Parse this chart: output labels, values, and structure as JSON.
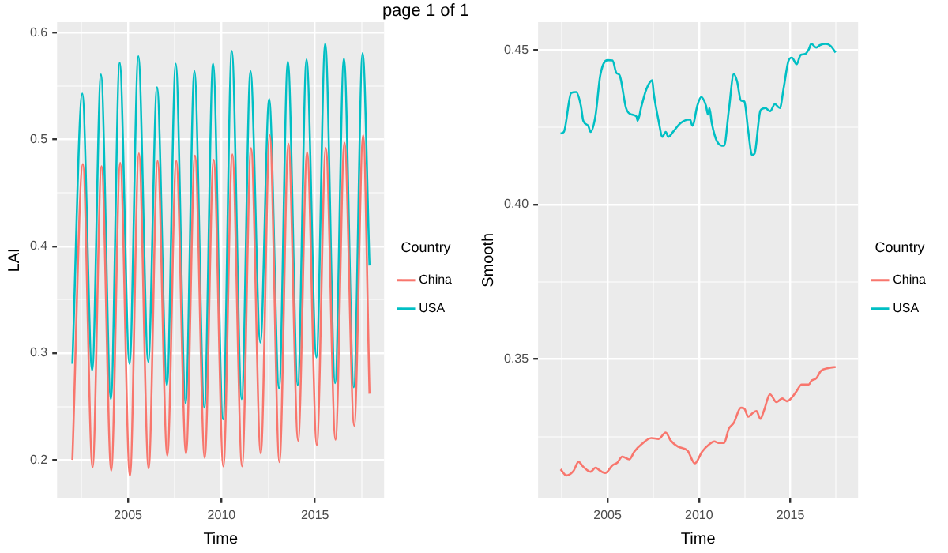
{
  "chart_data": [
    {
      "type": "line",
      "title": "page 1 of 1",
      "xlabel": "Time",
      "ylabel": "LAI",
      "legend_title": "Country",
      "legend": "right",
      "grid": true,
      "marker": "none",
      "xlim": [
        2001.2,
        2018.7
      ],
      "xticks": [
        {
          "value": 2002.5,
          "label": null
        },
        2005,
        {
          "value": 2007.5,
          "label": null
        },
        2010,
        {
          "value": 2012.5,
          "label": null
        },
        2015,
        {
          "value": 2017.5,
          "label": null
        }
      ],
      "ylim": [
        0.164,
        0.61
      ],
      "yticks": [
        {
          "value": 0.2,
          "label": "0.2"
        },
        {
          "value": 0.25,
          "label": null
        },
        {
          "value": 0.3,
          "label": "0.3"
        },
        {
          "value": 0.35,
          "label": null
        },
        {
          "value": 0.4,
          "label": "0.4"
        },
        {
          "value": 0.45,
          "label": null
        },
        {
          "value": 0.5,
          "label": "0.5"
        },
        {
          "value": 0.55,
          "label": null
        },
        {
          "value": 0.6,
          "label": "0.6"
        }
      ],
      "series": [
        {
          "name": "China",
          "color": "#f8766d",
          "x": [
            2002.02,
            2002.58,
            2003.1,
            2003.58,
            2004.1,
            2004.58,
            2005.1,
            2005.58,
            2006.1,
            2006.58,
            2007.1,
            2007.58,
            2008.1,
            2008.58,
            2009.1,
            2009.58,
            2010.1,
            2010.58,
            2011.1,
            2011.58,
            2012.1,
            2012.58,
            2013.1,
            2013.58,
            2014.1,
            2014.58,
            2015.1,
            2015.58,
            2016.1,
            2016.58,
            2017.1,
            2017.58,
            2017.92
          ],
          "values": [
            0.2,
            0.477,
            0.193,
            0.475,
            0.19,
            0.478,
            0.185,
            0.487,
            0.192,
            0.48,
            0.204,
            0.48,
            0.206,
            0.485,
            0.202,
            0.481,
            0.194,
            0.486,
            0.194,
            0.492,
            0.206,
            0.504,
            0.198,
            0.496,
            0.218,
            0.488,
            0.214,
            0.492,
            0.219,
            0.497,
            0.232,
            0.504,
            0.262
          ]
        },
        {
          "name": "USA",
          "color": "#00bfc4",
          "x": [
            2002.02,
            2002.55,
            2003.08,
            2003.55,
            2004.08,
            2004.55,
            2005.08,
            2005.55,
            2006.08,
            2006.55,
            2007.08,
            2007.55,
            2008.08,
            2008.55,
            2009.08,
            2009.55,
            2010.08,
            2010.55,
            2011.08,
            2011.55,
            2012.08,
            2012.55,
            2013.08,
            2013.55,
            2014.08,
            2014.55,
            2015.08,
            2015.55,
            2016.08,
            2016.55,
            2017.08,
            2017.55,
            2017.92
          ],
          "values": [
            0.29,
            0.543,
            0.284,
            0.561,
            0.257,
            0.572,
            0.29,
            0.578,
            0.292,
            0.549,
            0.27,
            0.571,
            0.253,
            0.564,
            0.249,
            0.571,
            0.238,
            0.583,
            0.257,
            0.564,
            0.31,
            0.538,
            0.267,
            0.573,
            0.27,
            0.575,
            0.296,
            0.59,
            0.272,
            0.576,
            0.268,
            0.581,
            0.382
          ]
        }
      ]
    },
    {
      "type": "line",
      "xlabel": "Time",
      "ylabel": "Smooth",
      "legend_title": "Country",
      "legend": "right",
      "grid": true,
      "marker": "none",
      "xlim": [
        2001.2,
        2018.7
      ],
      "xticks": [
        {
          "value": 2002.5,
          "label": null
        },
        2005,
        {
          "value": 2007.5,
          "label": null
        },
        2010,
        {
          "value": 2012.5,
          "label": null
        },
        2015,
        {
          "value": 2017.5,
          "label": null
        }
      ],
      "ylim": [
        0.305,
        0.459
      ],
      "yticks": [
        {
          "value": 0.325,
          "label": null
        },
        {
          "value": 0.35,
          "label": "0.35"
        },
        {
          "value": 0.375,
          "label": null
        },
        {
          "value": 0.4,
          "label": "0.40"
        },
        {
          "value": 0.425,
          "label": null
        },
        {
          "value": 0.45,
          "label": "0.45"
        }
      ],
      "series": [
        {
          "name": "China",
          "color": "#f8766d",
          "x": [
            2002.43,
            2002.75,
            2003.14,
            2003.41,
            2003.67,
            2004.07,
            2004.34,
            2004.6,
            2004.87,
            2005.27,
            2005.53,
            2005.8,
            2006.19,
            2006.46,
            2006.86,
            2007.39,
            2007.79,
            2008.18,
            2008.45,
            2008.85,
            2009.38,
            2009.77,
            2010.17,
            2010.57,
            2010.84,
            2011.05,
            2011.37,
            2011.63,
            2011.9,
            2012.29,
            2012.48,
            2012.69,
            2012.96,
            2013.14,
            2013.36,
            2013.54,
            2013.89,
            2014.23,
            2014.55,
            2014.81,
            2015.08,
            2015.34,
            2015.61,
            2016.01,
            2016.14,
            2016.41,
            2016.67,
            2017.07,
            2017.47
          ],
          "values": [
            0.3144,
            0.3124,
            0.3139,
            0.3168,
            0.3152,
            0.3136,
            0.3149,
            0.3139,
            0.3132,
            0.3157,
            0.3165,
            0.3185,
            0.3176,
            0.3201,
            0.3225,
            0.3245,
            0.3242,
            0.3263,
            0.3237,
            0.3217,
            0.3204,
            0.3163,
            0.3201,
            0.3225,
            0.3234,
            0.3229,
            0.3229,
            0.3275,
            0.3294,
            0.3343,
            0.334,
            0.3314,
            0.3327,
            0.3332,
            0.3307,
            0.3332,
            0.3386,
            0.3361,
            0.3373,
            0.3364,
            0.3376,
            0.3397,
            0.3418,
            0.3418,
            0.343,
            0.3438,
            0.3462,
            0.3471,
            0.3475
          ]
        },
        {
          "name": "USA",
          "color": "#00bfc4",
          "x": [
            2002.43,
            2002.61,
            2003.01,
            2003.28,
            2003.54,
            2003.67,
            2003.94,
            2004.07,
            2004.34,
            2004.6,
            2005.0,
            2005.27,
            2005.48,
            2005.66,
            2006.01,
            2006.33,
            2006.59,
            2006.64,
            2006.86,
            2007.12,
            2007.44,
            2007.52,
            2007.79,
            2008.0,
            2008.18,
            2008.32,
            2008.58,
            2008.98,
            2009.51,
            2009.64,
            2009.91,
            2010.12,
            2010.38,
            2010.49,
            2010.57,
            2010.7,
            2010.97,
            2011.37,
            2011.63,
            2011.9,
            2012.08,
            2012.29,
            2012.48,
            2012.69,
            2012.9,
            2013.04,
            2013.36,
            2013.62,
            2013.89,
            2014.15,
            2014.42,
            2014.63,
            2014.89,
            2015.08,
            2015.34,
            2015.56,
            2015.8,
            2016.01,
            2016.14,
            2016.41,
            2016.62,
            2016.94,
            2017.2,
            2017.47
          ],
          "values": [
            0.423,
            0.4235,
            0.4361,
            0.4364,
            0.432,
            0.4271,
            0.4255,
            0.4235,
            0.4288,
            0.4418,
            0.4467,
            0.4466,
            0.4426,
            0.4418,
            0.4312,
            0.4291,
            0.4284,
            0.4271,
            0.432,
            0.4373,
            0.4402,
            0.4361,
            0.4271,
            0.4219,
            0.4235,
            0.4219,
            0.4235,
            0.4263,
            0.4275,
            0.4255,
            0.432,
            0.4348,
            0.432,
            0.4291,
            0.4312,
            0.4263,
            0.4206,
            0.419,
            0.4304,
            0.4422,
            0.4399,
            0.4337,
            0.4333,
            0.4239,
            0.416,
            0.4165,
            0.4304,
            0.4312,
            0.4302,
            0.4325,
            0.4312,
            0.4377,
            0.4464,
            0.4475,
            0.4454,
            0.4484,
            0.4487,
            0.4503,
            0.452,
            0.4508,
            0.4516,
            0.452,
            0.4513,
            0.4492
          ]
        }
      ]
    }
  ]
}
